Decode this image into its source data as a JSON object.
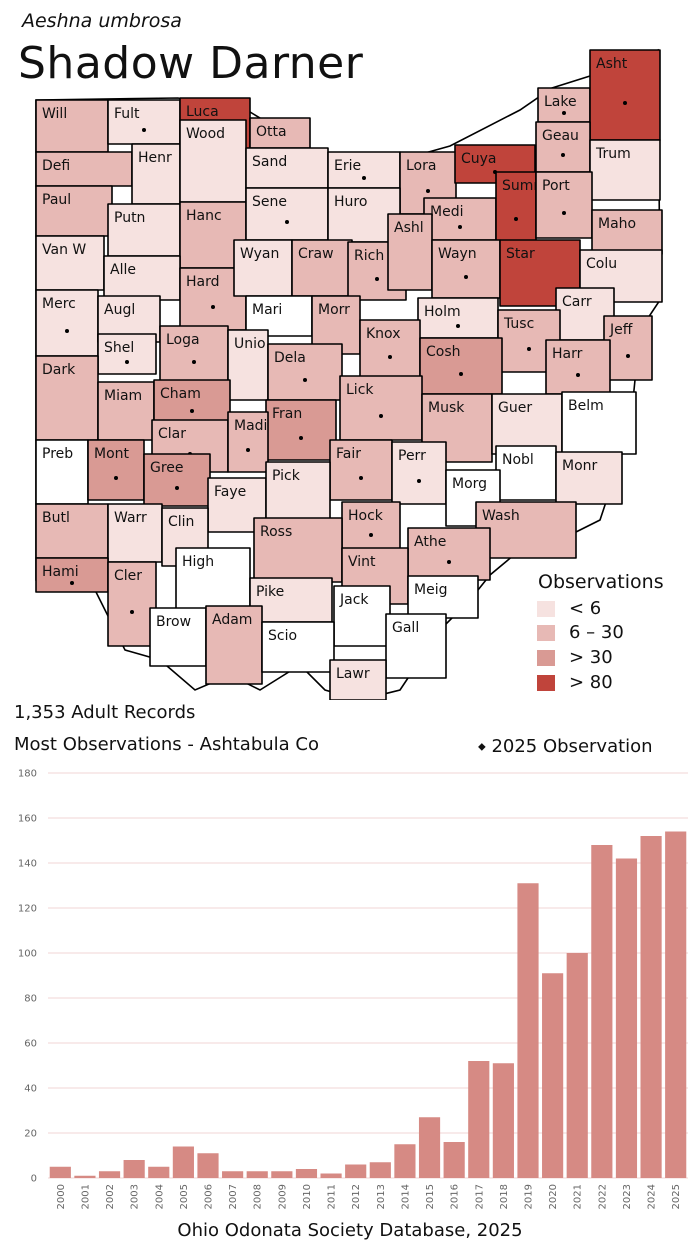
{
  "header": {
    "scientific_name": "Aeshna umbrosa",
    "common_name": "Shadow Darner"
  },
  "legend": {
    "title": "Observations",
    "items": [
      {
        "label": "< 6",
        "color": "#f6e2e0"
      },
      {
        "label": "6 – 30",
        "color": "#e7b9b5"
      },
      {
        "label": "> 30",
        "color": "#d99a94"
      },
      {
        "label": "> 80",
        "color": "#c0443b"
      }
    ]
  },
  "stats": {
    "records": "1,353 Adult Records",
    "most": "Most Observations - Ashtabula Co",
    "dot_label": "2025 Observation"
  },
  "counties": [
    {
      "name": "Will",
      "cat": 2,
      "dot": false
    },
    {
      "name": "Fult",
      "cat": 1,
      "dot": true
    },
    {
      "name": "Luca",
      "cat": 4,
      "dot": true
    },
    {
      "name": "Otta",
      "cat": 2,
      "dot": false
    },
    {
      "name": "Lake",
      "cat": 2,
      "dot": true
    },
    {
      "name": "Asht",
      "cat": 4,
      "dot": true
    },
    {
      "name": "Defi",
      "cat": 2,
      "dot": false
    },
    {
      "name": "Henr",
      "cat": 1,
      "dot": false
    },
    {
      "name": "Wood",
      "cat": 1,
      "dot": false
    },
    {
      "name": "Sand",
      "cat": 1,
      "dot": false
    },
    {
      "name": "Erie",
      "cat": 1,
      "dot": true
    },
    {
      "name": "Lora",
      "cat": 2,
      "dot": true
    },
    {
      "name": "Cuya",
      "cat": 4,
      "dot": true
    },
    {
      "name": "Geau",
      "cat": 2,
      "dot": true
    },
    {
      "name": "Trum",
      "cat": 1,
      "dot": false
    },
    {
      "name": "Paul",
      "cat": 2,
      "dot": false
    },
    {
      "name": "Putn",
      "cat": 1,
      "dot": false
    },
    {
      "name": "Hanc",
      "cat": 2,
      "dot": false
    },
    {
      "name": "Sene",
      "cat": 1,
      "dot": true
    },
    {
      "name": "Huro",
      "cat": 1,
      "dot": false
    },
    {
      "name": "Medi",
      "cat": 2,
      "dot": true
    },
    {
      "name": "Summ",
      "cat": 4,
      "dot": true
    },
    {
      "name": "Port",
      "cat": 2,
      "dot": true
    },
    {
      "name": "Maho",
      "cat": 2,
      "dot": false
    },
    {
      "name": "Van W",
      "cat": 1,
      "dot": false
    },
    {
      "name": "Alle",
      "cat": 1,
      "dot": false
    },
    {
      "name": "Hard",
      "cat": 2,
      "dot": true
    },
    {
      "name": "Wyan",
      "cat": 1,
      "dot": false
    },
    {
      "name": "Craw",
      "cat": 2,
      "dot": false
    },
    {
      "name": "Rich",
      "cat": 2,
      "dot": true
    },
    {
      "name": "Ashl",
      "cat": 2,
      "dot": false
    },
    {
      "name": "Wayn",
      "cat": 2,
      "dot": true
    },
    {
      "name": "Star",
      "cat": 4,
      "dot": false
    },
    {
      "name": "Colu",
      "cat": 1,
      "dot": false
    },
    {
      "name": "Merc",
      "cat": 1,
      "dot": true
    },
    {
      "name": "Augl",
      "cat": 1,
      "dot": false
    },
    {
      "name": "Mari",
      "cat": 0,
      "dot": false
    },
    {
      "name": "Morr",
      "cat": 2,
      "dot": false
    },
    {
      "name": "Holm",
      "cat": 1,
      "dot": true
    },
    {
      "name": "Carr",
      "cat": 1,
      "dot": false
    },
    {
      "name": "Tusc",
      "cat": 2,
      "dot": true
    },
    {
      "name": "Jeff",
      "cat": 2,
      "dot": true
    },
    {
      "name": "Shel",
      "cat": 1,
      "dot": true
    },
    {
      "name": "Loga",
      "cat": 2,
      "dot": true
    },
    {
      "name": "Knox",
      "cat": 2,
      "dot": true
    },
    {
      "name": "Dark",
      "cat": 2,
      "dot": false
    },
    {
      "name": "Unio",
      "cat": 1,
      "dot": false
    },
    {
      "name": "Dela",
      "cat": 2,
      "dot": true
    },
    {
      "name": "Cosh",
      "cat": 3,
      "dot": true
    },
    {
      "name": "Harr",
      "cat": 2,
      "dot": true
    },
    {
      "name": "Miam",
      "cat": 2,
      "dot": false
    },
    {
      "name": "Cham",
      "cat": 3,
      "dot": true
    },
    {
      "name": "Lick",
      "cat": 2,
      "dot": true
    },
    {
      "name": "Musk",
      "cat": 2,
      "dot": false
    },
    {
      "name": "Guer",
      "cat": 1,
      "dot": false
    },
    {
      "name": "Belm",
      "cat": 0,
      "dot": false
    },
    {
      "name": "Clar",
      "cat": 2,
      "dot": true
    },
    {
      "name": "Fran",
      "cat": 3,
      "dot": true
    },
    {
      "name": "Madi",
      "cat": 2,
      "dot": true
    },
    {
      "name": "Preb",
      "cat": 0,
      "dot": false
    },
    {
      "name": "Mont",
      "cat": 3,
      "dot": true
    },
    {
      "name": "Gree",
      "cat": 3,
      "dot": true
    },
    {
      "name": "Fair",
      "cat": 2,
      "dot": true
    },
    {
      "name": "Perr",
      "cat": 1,
      "dot": true
    },
    {
      "name": "Nobl",
      "cat": 0,
      "dot": false
    },
    {
      "name": "Monr",
      "cat": 1,
      "dot": false
    },
    {
      "name": "Faye",
      "cat": 1,
      "dot": false
    },
    {
      "name": "Pick",
      "cat": 1,
      "dot": false
    },
    {
      "name": "Morg",
      "cat": 0,
      "dot": false
    },
    {
      "name": "Butl",
      "cat": 2,
      "dot": false
    },
    {
      "name": "Warr",
      "cat": 1,
      "dot": false
    },
    {
      "name": "Clin",
      "cat": 1,
      "dot": false
    },
    {
      "name": "Hock",
      "cat": 2,
      "dot": true
    },
    {
      "name": "Wash",
      "cat": 2,
      "dot": false
    },
    {
      "name": "Ross",
      "cat": 2,
      "dot": false
    },
    {
      "name": "Athe",
      "cat": 2,
      "dot": true
    },
    {
      "name": "Vint",
      "cat": 2,
      "dot": false
    },
    {
      "name": "Hami",
      "cat": 3,
      "dot": true
    },
    {
      "name": "Cler",
      "cat": 2,
      "dot": true
    },
    {
      "name": "High",
      "cat": 0,
      "dot": false
    },
    {
      "name": "Pike",
      "cat": 1,
      "dot": false
    },
    {
      "name": "Jack",
      "cat": 0,
      "dot": false
    },
    {
      "name": "Meig",
      "cat": 0,
      "dot": false
    },
    {
      "name": "Brow",
      "cat": 0,
      "dot": false
    },
    {
      "name": "Adam",
      "cat": 2,
      "dot": false
    },
    {
      "name": "Scio",
      "cat": 0,
      "dot": false
    },
    {
      "name": "Gall",
      "cat": 0,
      "dot": false
    },
    {
      "name": "Lawr",
      "cat": 1,
      "dot": false
    }
  ],
  "chart_data": {
    "type": "bar",
    "categories": [
      "2000",
      "2001",
      "2002",
      "2003",
      "2004",
      "2005",
      "2006",
      "2007",
      "2008",
      "2009",
      "2010",
      "2011",
      "2012",
      "2013",
      "2014",
      "2015",
      "2016",
      "2017",
      "2018",
      "2019",
      "2020",
      "2021",
      "2022",
      "2023",
      "2024",
      "2025"
    ],
    "values": [
      5,
      1,
      3,
      8,
      5,
      14,
      11,
      3,
      3,
      3,
      4,
      2,
      6,
      7,
      15,
      27,
      16,
      52,
      51,
      131,
      91,
      100,
      148,
      142,
      152,
      154
    ],
    "ylim": [
      0,
      180
    ],
    "yticks": [
      0,
      20,
      40,
      60,
      80,
      100,
      120,
      140,
      160,
      180
    ],
    "bar_color": "#d68a84",
    "grid": true,
    "title": "",
    "xlabel": "",
    "ylabel": ""
  },
  "footer": "Ohio Odonata Society Database, 2025"
}
